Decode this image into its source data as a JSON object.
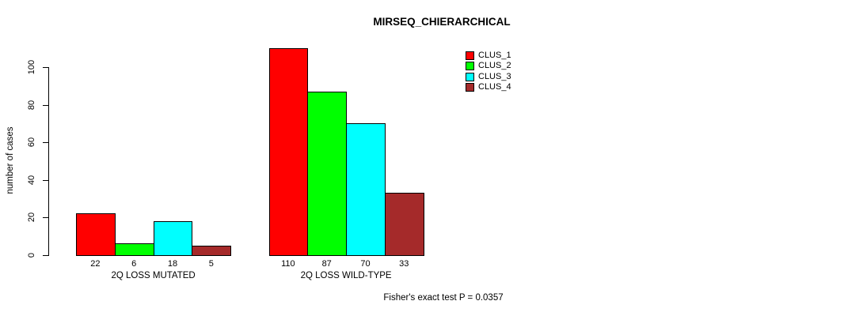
{
  "chart_data": {
    "type": "bar",
    "title": "MIRSEQ_CHIERARCHICAL",
    "ylabel": "number of cases",
    "xlabel": "",
    "groups": [
      "2Q LOSS MUTATED",
      "2Q LOSS WILD-TYPE"
    ],
    "series": [
      {
        "name": "CLUS_1",
        "color": "#FF0000",
        "values": [
          22,
          110
        ]
      },
      {
        "name": "CLUS_2",
        "color": "#00FF00",
        "values": [
          6,
          87
        ]
      },
      {
        "name": "CLUS_3",
        "color": "#00FFFF",
        "values": [
          18,
          70
        ]
      },
      {
        "name": "CLUS_4",
        "color": "#A52A2A",
        "values": [
          5,
          33
        ]
      }
    ],
    "yticks": [
      0,
      20,
      40,
      60,
      80,
      100
    ],
    "ylim": [
      0,
      110
    ],
    "show_values": true,
    "grid": false,
    "legend_position": "top-right",
    "annotation": "Fisher's exact test P = 0.0357"
  },
  "colors": {
    "background": "#FFFFFF",
    "axis": "#000000",
    "text": "#000000"
  }
}
